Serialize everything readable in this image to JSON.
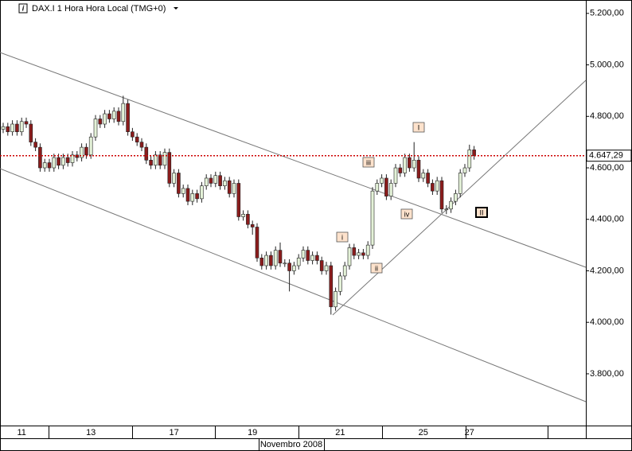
{
  "chart_data": {
    "type": "candlestick",
    "title": "DAX.I 1 Hora Hora Local (TMG+0)",
    "x_label": "Novembro 2008",
    "categories": [
      null,
      null,
      null,
      null,
      "11",
      null,
      null,
      null,
      null,
      null,
      null,
      null,
      null,
      null,
      null,
      null,
      null,
      null,
      null,
      "13",
      null,
      null,
      null,
      null,
      null,
      null,
      null,
      null,
      null,
      null,
      null,
      null,
      null,
      null,
      null,
      null,
      null,
      "17",
      null,
      null,
      null,
      null,
      null,
      null,
      null,
      null,
      null,
      null,
      null,
      null,
      null,
      null,
      null,
      null,
      "19",
      null,
      null,
      null,
      null,
      null,
      null,
      null,
      null,
      null,
      null,
      null,
      null,
      null,
      null,
      null,
      null,
      null,
      null,
      "21",
      null,
      null,
      null,
      null,
      null,
      null,
      null,
      null,
      null,
      null,
      null,
      null,
      null,
      null,
      null,
      null,
      null,
      "25",
      null,
      null,
      null,
      null,
      null,
      null,
      null,
      null,
      null,
      "27",
      null
    ],
    "open": [
      4750,
      4760,
      4740,
      4770,
      4740,
      4780,
      4770,
      4700,
      4680,
      4600,
      4620,
      4600,
      4640,
      4610,
      4640,
      4620,
      4650,
      4640,
      4680,
      4650,
      4720,
      4790,
      4770,
      4810,
      4790,
      4820,
      4780,
      4850,
      4740,
      4720,
      4700,
      4680,
      4630,
      4610,
      4650,
      4610,
      4660,
      4540,
      4580,
      4500,
      4520,
      4470,
      4500,
      4480,
      4530,
      4560,
      4540,
      4570,
      4530,
      4550,
      4500,
      4540,
      4410,
      4420,
      4380,
      4370,
      4250,
      4220,
      4260,
      4220,
      4280,
      4230,
      4230,
      4200,
      4220,
      4250,
      4280,
      4240,
      4260,
      4240,
      4200,
      4220,
      4060,
      4120,
      4180,
      4220,
      4290,
      4260,
      4270,
      4260,
      4300,
      4510,
      4540,
      4560,
      4490,
      4540,
      4600,
      4580,
      4640,
      4600,
      4630,
      4560,
      4580,
      4540,
      4510,
      4550,
      4440,
      4440,
      4470,
      4500,
      4580,
      4600,
      4670
    ],
    "high": [
      4775,
      4775,
      4785,
      4785,
      4795,
      4795,
      4785,
      4715,
      4695,
      4635,
      4635,
      4655,
      4655,
      4655,
      4655,
      4665,
      4665,
      4695,
      4695,
      4735,
      4805,
      4805,
      4825,
      4825,
      4835,
      4835,
      4880,
      4865,
      4755,
      4735,
      4715,
      4695,
      4645,
      4665,
      4665,
      4675,
      4675,
      4595,
      4595,
      4535,
      4535,
      4515,
      4515,
      4545,
      4575,
      4575,
      4585,
      4585,
      4565,
      4565,
      4555,
      4555,
      4435,
      4435,
      4395,
      4385,
      4265,
      4275,
      4275,
      4295,
      4310,
      4245,
      4245,
      4235,
      4265,
      4295,
      4295,
      4275,
      4275,
      4255,
      4235,
      4235,
      4135,
      4195,
      4235,
      4305,
      4305,
      4285,
      4285,
      4315,
      4525,
      4555,
      4575,
      4575,
      4555,
      4615,
      4615,
      4655,
      4655,
      4700,
      4645,
      4595,
      4595,
      4555,
      4565,
      4565,
      4455,
      4485,
      4515,
      4595,
      4615,
      4690,
      4685
    ],
    "low": [
      4735,
      4725,
      4725,
      4725,
      4725,
      4755,
      4685,
      4665,
      4585,
      4585,
      4585,
      4585,
      4595,
      4595,
      4605,
      4605,
      4625,
      4625,
      4635,
      4635,
      4705,
      4755,
      4755,
      4775,
      4775,
      4765,
      4765,
      4725,
      4705,
      4685,
      4665,
      4615,
      4595,
      4595,
      4595,
      4595,
      4525,
      4525,
      4485,
      4485,
      4455,
      4455,
      4465,
      4465,
      4515,
      4525,
      4525,
      4515,
      4515,
      4485,
      4485,
      4395,
      4395,
      4365,
      4340,
      4235,
      4205,
      4205,
      4205,
      4205,
      4215,
      4215,
      4120,
      4185,
      4205,
      4235,
      4225,
      4225,
      4225,
      4185,
      4185,
      4030,
      4045,
      4105,
      4165,
      4205,
      4245,
      4245,
      4245,
      4245,
      4285,
      4495,
      4525,
      4475,
      4475,
      4525,
      4565,
      4565,
      4585,
      4585,
      4545,
      4545,
      4525,
      4495,
      4495,
      4425,
      4420,
      4425,
      4455,
      4485,
      4565,
      4585,
      4632
    ],
    "close": [
      4760,
      4740,
      4770,
      4740,
      4780,
      4770,
      4700,
      4680,
      4600,
      4620,
      4600,
      4640,
      4610,
      4640,
      4620,
      4650,
      4640,
      4680,
      4650,
      4720,
      4790,
      4770,
      4810,
      4790,
      4820,
      4780,
      4850,
      4740,
      4720,
      4700,
      4680,
      4630,
      4610,
      4650,
      4610,
      4660,
      4540,
      4580,
      4500,
      4520,
      4470,
      4500,
      4480,
      4530,
      4560,
      4540,
      4570,
      4530,
      4550,
      4500,
      4540,
      4410,
      4420,
      4380,
      4370,
      4250,
      4220,
      4260,
      4220,
      4280,
      4230,
      4230,
      4200,
      4220,
      4250,
      4280,
      4240,
      4260,
      4240,
      4200,
      4220,
      4060,
      4120,
      4180,
      4220,
      4290,
      4260,
      4270,
      4260,
      4300,
      4510,
      4540,
      4560,
      4490,
      4540,
      4600,
      4580,
      4640,
      4600,
      4630,
      4560,
      4580,
      4540,
      4510,
      4550,
      4440,
      4440,
      4470,
      4500,
      4580,
      4600,
      4670,
      4647.29
    ],
    "up_color": "#e4f2d8",
    "down_color": "#8b1c1c",
    "last_price": {
      "value": 4647.29,
      "label": "4.647,29"
    },
    "last_price_color": "#cc0000",
    "annotations": [
      "I",
      "iii",
      "iv",
      "II",
      "i",
      "ii"
    ],
    "ylim": [
      3599,
      5252
    ],
    "yticks": [
      {
        "value": 3800,
        "label": "3.800,00"
      },
      {
        "value": 4000,
        "label": "4.000,00"
      },
      {
        "value": 4200,
        "label": "4.200,00"
      },
      {
        "value": 4400,
        "label": "4.400,00"
      },
      {
        "value": 4600,
        "label": "4.600,00"
      },
      {
        "value": 4800,
        "label": "4.800,00"
      },
      {
        "value": 5000,
        "label": "5.000,00"
      },
      {
        "value": 5200,
        "label": "5.200,00"
      }
    ]
  }
}
